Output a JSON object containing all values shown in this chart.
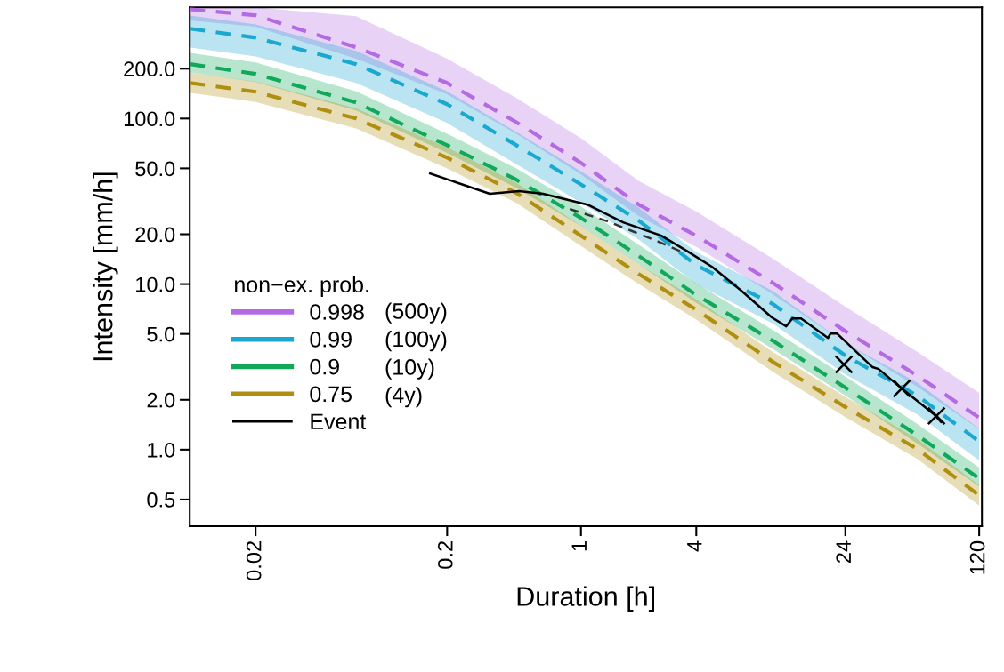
{
  "chart_data": {
    "type": "line",
    "xlabel": "Duration [h]",
    "ylabel": "Intensity [mm/h]",
    "log": "xy",
    "x": [
      0.0091,
      0.02,
      0.067,
      0.2,
      0.46,
      1,
      2,
      4,
      10,
      24,
      57,
      120
    ],
    "xlim": [
      0.00906,
      124
    ],
    "ylim": [
      0.345,
      469
    ],
    "xticks": [
      0.02,
      0.2,
      1,
      4,
      24,
      120
    ],
    "yticks": [
      {
        "value": 0.5,
        "label": "0.5"
      },
      {
        "value": 1,
        "label": "1.0"
      },
      {
        "value": 2,
        "label": "2.0"
      },
      {
        "value": 5,
        "label": "5.0"
      },
      {
        "value": 10,
        "label": "10.0"
      },
      {
        "value": 20,
        "label": "20.0"
      },
      {
        "value": 50,
        "label": "50.0"
      },
      {
        "value": 100,
        "label": "100.0"
      },
      {
        "value": 200,
        "label": "200.0"
      }
    ],
    "grid": false,
    "legend": "left",
    "legend_title": "non−ex. prob.",
    "annotations": [
      "(500y)",
      "(100y)",
      "(10y)",
      "(4y)"
    ],
    "series": [
      {
        "name": "0.998",
        "line_style": "dashed",
        "color": "#b36ae2",
        "values": [
          457,
          420,
          269,
          164,
          95,
          54,
          30.2,
          19.6,
          10.2,
          5.2,
          2.8,
          1.56
        ],
        "upper": [
          469,
          469,
          415,
          230,
          133,
          76,
          42,
          27.4,
          14.3,
          7.3,
          3.9,
          2.2
        ],
        "lower": [
          391,
          359,
          230,
          140,
          81,
          46,
          25.8,
          16.8,
          8.7,
          4.4,
          2.4,
          1.33
        ]
      },
      {
        "name": "0.99",
        "line_style": "dashed",
        "color": "#1aa7d0",
        "values": [
          349,
          308,
          213,
          122,
          69,
          40,
          24.2,
          13.0,
          7.6,
          3.7,
          2.12,
          1.12
        ],
        "upper": [
          419,
          370,
          256,
          146,
          83,
          48,
          29,
          15.6,
          9.1,
          4.4,
          2.54,
          1.34
        ],
        "lower": [
          268,
          237,
          164,
          94,
          53,
          31,
          18.6,
          10.0,
          5.8,
          2.85,
          1.63,
          0.86
        ]
      },
      {
        "name": "0.9",
        "line_style": "dashed",
        "color": "#12a85a",
        "values": [
          213,
          186,
          125,
          69,
          42.7,
          25.1,
          14.8,
          8.6,
          4.56,
          2.37,
          1.22,
          0.67
        ],
        "upper": [
          249,
          218,
          146,
          81,
          50,
          29.4,
          17.3,
          10.1,
          5.3,
          2.77,
          1.43,
          0.78
        ],
        "lower": [
          190,
          166,
          112,
          62,
          38.1,
          22.4,
          13.2,
          7.7,
          4.07,
          2.12,
          1.09,
          0.6
        ]
      },
      {
        "name": "0.75",
        "line_style": "dashed",
        "color": "#b08f10",
        "values": [
          164,
          145,
          100,
          58,
          35.5,
          19.6,
          11.5,
          7.0,
          3.4,
          1.81,
          1.01,
          0.53
        ],
        "upper": [
          189,
          167,
          115,
          67,
          40.8,
          22.5,
          13.2,
          8.1,
          3.9,
          2.08,
          1.16,
          0.61
        ],
        "lower": [
          143,
          126,
          87,
          50,
          30.9,
          17.0,
          10.0,
          6.1,
          2.96,
          1.57,
          0.88,
          0.46
        ]
      },
      {
        "line_style": "dashed",
        "color": "#333333",
        "x": [
          0.874,
          1.34,
          1.85,
          2.55,
          3.51
        ],
        "values": [
          28.4,
          24.2,
          20.9,
          18.0,
          15.3
        ]
      },
      {
        "name": "Event",
        "line_style": "solid",
        "color": "#000000",
        "x": [
          0.163,
          0.334,
          0.475,
          0.634,
          1.08,
          1.66,
          2.63,
          3.62,
          4.84,
          6.89,
          9.91,
          11.8,
          12.7,
          14.1,
          19.5,
          20.1,
          21.7,
          33.3,
          35.8,
          47.3,
          70.3,
          75.9
        ],
        "values": [
          46.6,
          35.1,
          36.4,
          35.1,
          30.2,
          23.6,
          19.6,
          15.7,
          12.7,
          9.1,
          6.3,
          5.56,
          6.2,
          6.2,
          4.73,
          5.03,
          5.03,
          3.15,
          3.07,
          2.34,
          1.62,
          1.47
        ]
      },
      {
        "type": "scatter",
        "marker": "cross",
        "color": "#000000",
        "x": [
          23.6,
          47.3,
          71.8
        ],
        "values": [
          3.27,
          2.34,
          1.6
        ]
      }
    ]
  }
}
